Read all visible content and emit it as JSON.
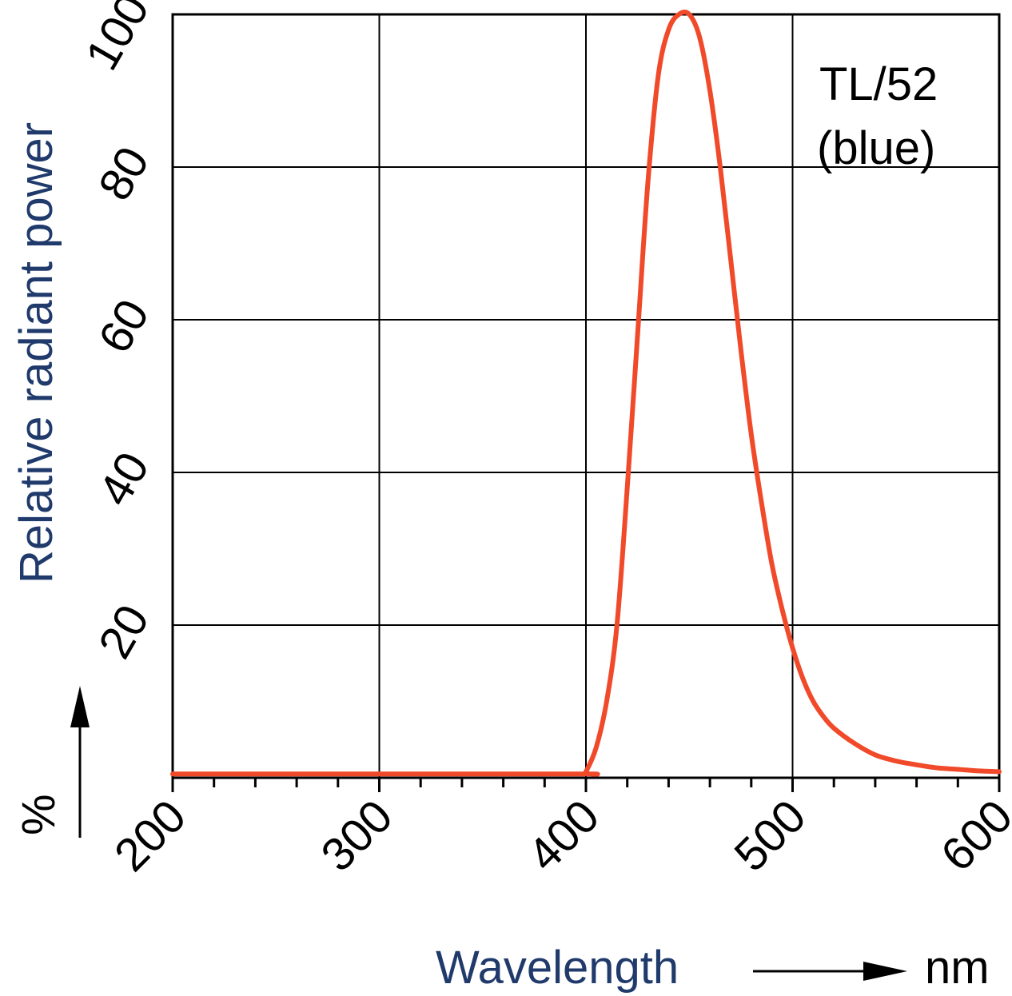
{
  "chart_data": {
    "type": "line",
    "title": "",
    "xlabel": "Wavelength",
    "xunit": "nm",
    "ylabel": "Relative radiant power",
    "yunit": "%",
    "xlim": [
      200,
      600
    ],
    "ylim": [
      0,
      100
    ],
    "x_ticks": [
      "200",
      "300",
      "400",
      "500",
      "600"
    ],
    "y_ticks": [
      "20",
      "40",
      "60",
      "80",
      "100"
    ],
    "x_minor_step": 20,
    "grid": true,
    "annotation": [
      "TL/52",
      "(blue)"
    ],
    "colors": {
      "curve": "#f04a2a",
      "axis_title": "#1f3a6b",
      "grid": "#000000"
    },
    "series": [
      {
        "x": [
          200,
          300,
          398,
          400,
          405,
          410,
          415,
          420,
          425,
          430,
          435,
          440,
          445,
          450,
          455,
          460,
          465,
          470,
          475,
          480,
          485,
          490,
          495,
          500,
          505,
          510,
          515,
          520,
          530,
          540,
          550,
          560,
          570,
          580,
          590,
          600
        ],
        "values": [
          0.5,
          0.5,
          0.5,
          0.8,
          4,
          10,
          20,
          38,
          58,
          78,
          92,
          98,
          100,
          100,
          97,
          90,
          80,
          68,
          56,
          45,
          36,
          28,
          22,
          17,
          13,
          10,
          8,
          6.5,
          4.5,
          3,
          2.2,
          1.7,
          1.3,
          1.1,
          0.9,
          0.8
        ]
      }
    ]
  }
}
